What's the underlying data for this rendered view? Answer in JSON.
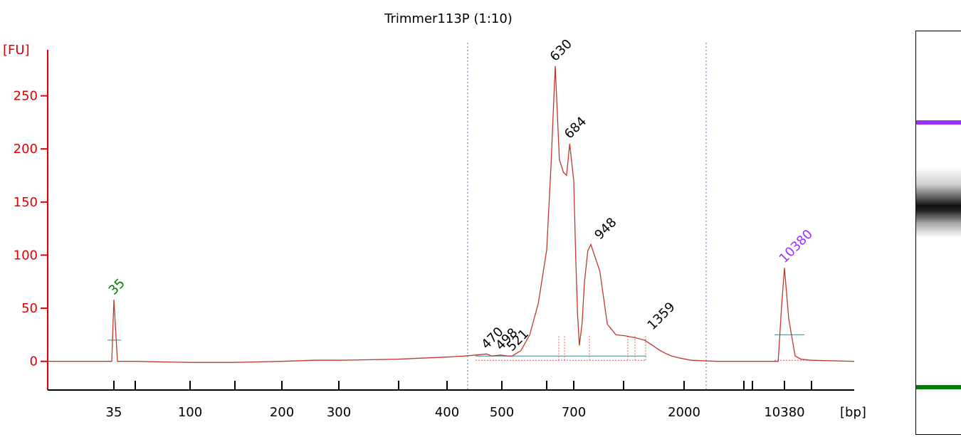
{
  "chart_data": {
    "type": "line",
    "title": "Trimmer113P (1:10)",
    "xlabel": "[bp]",
    "ylabel": "[FU]",
    "ylim": [
      -27,
      300
    ],
    "yticks": [
      0,
      50,
      100,
      150,
      200,
      250
    ],
    "xticks": [
      "35",
      "100",
      "200",
      "300",
      "400",
      "500",
      "700",
      "2000",
      "10380"
    ],
    "grid": false,
    "series": [
      {
        "x": [
          35,
          50,
          100,
          150,
          200,
          250,
          300,
          350,
          400,
          430,
          450,
          470,
          480,
          498,
          510,
          521,
          540,
          560,
          580,
          600,
          615,
          630,
          645,
          660,
          672,
          684,
          700,
          720,
          740,
          760,
          790,
          820,
          860,
          900,
          948,
          990,
          1040,
          1100,
          1170,
          1250,
          1359,
          1450,
          1550,
          1700,
          1900,
          2100,
          2500,
          3500,
          5000,
          7000,
          9000,
          9700,
          10380,
          11000,
          12000,
          13000,
          15000,
          17000
        ],
        "y": [
          58,
          0,
          -1,
          -1,
          0,
          1,
          1,
          2,
          4,
          5,
          6,
          7,
          5,
          6,
          5,
          5,
          10,
          25,
          55,
          105,
          185,
          278,
          190,
          178,
          175,
          205,
          170,
          100,
          45,
          15,
          35,
          75,
          104,
          110,
          85,
          35,
          25,
          24,
          22,
          20,
          15,
          11,
          8,
          5,
          3,
          1,
          0,
          0,
          0,
          0,
          0,
          50,
          88,
          40,
          5,
          2,
          1,
          0
        ]
      }
    ],
    "peak_labels": [
      {
        "text": "35",
        "x": 35,
        "y": 58,
        "color": "#008000"
      },
      {
        "text": "470",
        "x": 470,
        "y": 7,
        "color": "#000000"
      },
      {
        "text": "498",
        "x": 498,
        "y": 6,
        "color": "#000000"
      },
      {
        "text": "521",
        "x": 521,
        "y": 5,
        "color": "#000000"
      },
      {
        "text": "630",
        "x": 630,
        "y": 278,
        "color": "#000000"
      },
      {
        "text": "684",
        "x": 684,
        "y": 205,
        "color": "#000000"
      },
      {
        "text": "948",
        "x": 948,
        "y": 110,
        "color": "#000000"
      },
      {
        "text": "1359",
        "x": 1359,
        "y": 25,
        "color": "#000000"
      },
      {
        "text": "10380",
        "x": 10380,
        "y": 88,
        "color": "#9b30ff"
      }
    ],
    "gel": {
      "upper_marker_color": "#9b30ff",
      "lower_marker_color": "#008000"
    }
  }
}
